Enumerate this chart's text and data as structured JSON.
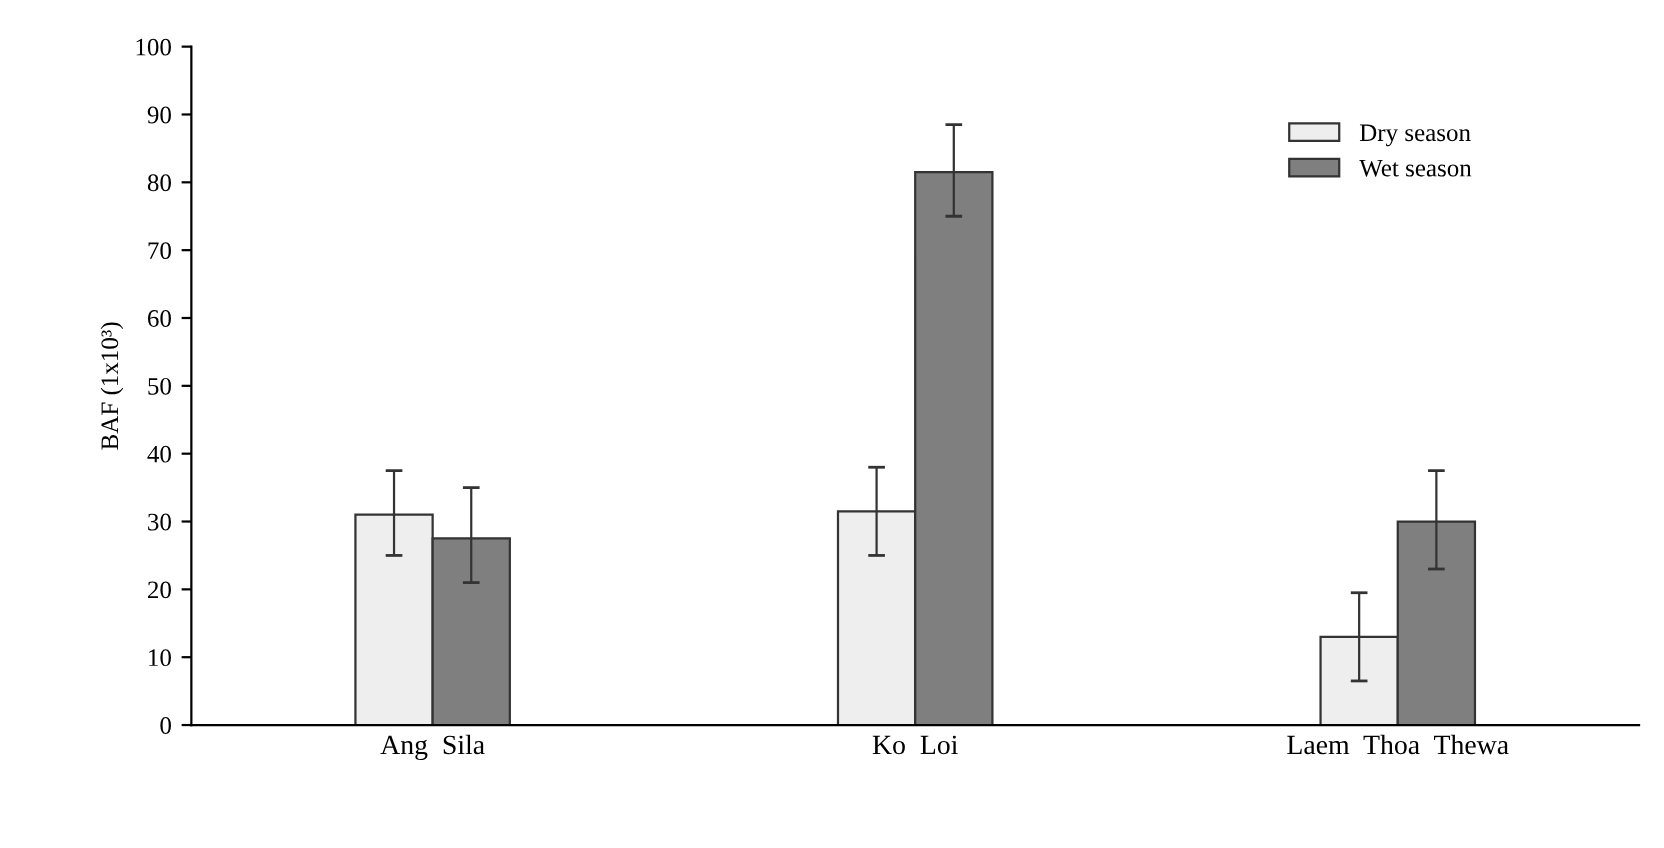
{
  "chart_data": {
    "type": "bar",
    "ylabel": "BAF (1x10³)",
    "categories": [
      "Ang  Sila",
      "Ko  Loi",
      "Laem  Thoa  Thewa"
    ],
    "series": [
      {
        "name": "Dry season",
        "color": "#eeeeee",
        "values": [
          31,
          31.5,
          13
        ],
        "errors": [
          [
            25,
            37.5
          ],
          [
            25,
            38
          ],
          [
            6.5,
            19.5
          ]
        ]
      },
      {
        "name": "Wet season",
        "color": "#7f7f7f",
        "values": [
          27.5,
          81.5,
          30
        ],
        "errors": [
          [
            21,
            35
          ],
          [
            75,
            88.5
          ],
          [
            23,
            37.5
          ]
        ]
      }
    ],
    "ylim": [
      0,
      100
    ],
    "yticks": [
      0,
      10,
      20,
      30,
      40,
      50,
      60,
      70,
      80,
      90,
      100
    ],
    "legend": "top right",
    "grid": false
  }
}
